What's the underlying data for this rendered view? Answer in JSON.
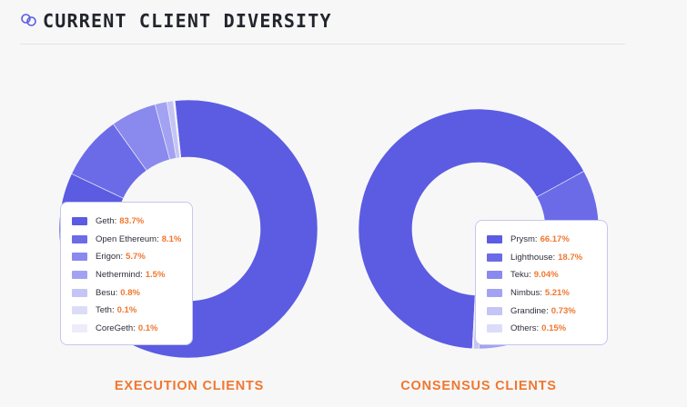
{
  "header": {
    "title": "CURRENT CLIENT DIVERSITY",
    "icon": "chain-link-icon"
  },
  "colors": {
    "accent": "#f0772f",
    "slices": [
      "#5b5ce2",
      "#6b6be8",
      "#8a89ee",
      "#a3a2f2",
      "#c4c4f6",
      "#dcdcf9",
      "#ececfb"
    ]
  },
  "chart_data": [
    {
      "type": "pie",
      "title": "EXECUTION CLIENTS",
      "categories": [
        "Geth",
        "Open Ethereum",
        "Erigon",
        "Nethermind",
        "Besu",
        "Teth",
        "CoreGeth"
      ],
      "values": [
        83.7,
        8.1,
        5.7,
        1.5,
        0.8,
        0.1,
        0.1
      ],
      "labels": [
        "83.7%",
        "8.1%",
        "5.7%",
        "1.5%",
        "0.8%",
        "0.1%",
        "0.1%"
      ],
      "legend": "inside-lower-left"
    },
    {
      "type": "pie",
      "title": "CONSENSUS CLIENTS",
      "categories": [
        "Prysm",
        "Lighthouse",
        "Teku",
        "Nimbus",
        "Grandine",
        "Others"
      ],
      "values": [
        66.17,
        18.7,
        9.04,
        5.21,
        0.73,
        0.15
      ],
      "labels": [
        "66.17%",
        "18.7%",
        "9.04%",
        "5.21%",
        "0.73%",
        "0.15%"
      ],
      "legend": "inside-lower-right"
    }
  ]
}
